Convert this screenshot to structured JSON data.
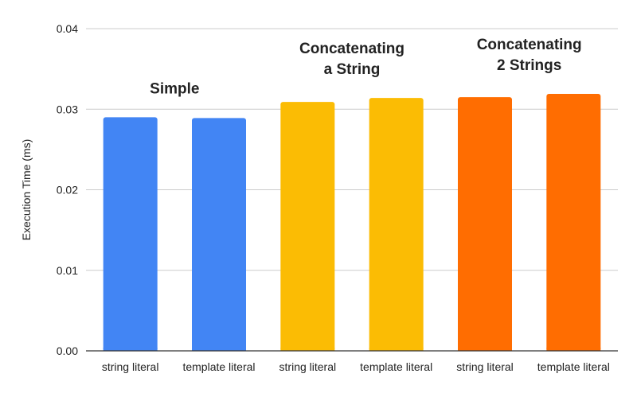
{
  "chart_data": {
    "type": "bar",
    "title": "",
    "xlabel": "",
    "ylabel": "Execution Time (ms)",
    "ylim": [
      0,
      0.04
    ],
    "yticks": [
      "0.00",
      "0.01",
      "0.02",
      "0.03",
      "0.04"
    ],
    "yticks_values": [
      0,
      0.01,
      0.02,
      0.03,
      0.04
    ],
    "grid": true,
    "legend": "none",
    "categories": [
      "string literal",
      "template literal",
      "string literal",
      "template literal",
      "string literal",
      "template literal"
    ],
    "values": [
      0.029,
      0.0289,
      0.0309,
      0.0314,
      0.0315,
      0.0319
    ],
    "colors": [
      "#4285f4",
      "#4285f4",
      "#fbbc04",
      "#fbbc04",
      "#ff6d01",
      "#ff6d01"
    ],
    "groups": [
      {
        "label_lines": [
          "Simple"
        ],
        "bars": [
          0,
          1
        ]
      },
      {
        "label_lines": [
          "Concatenating",
          "a String"
        ],
        "bars": [
          2,
          3
        ]
      },
      {
        "label_lines": [
          "Concatenating",
          "2 Strings"
        ],
        "bars": [
          4,
          5
        ]
      }
    ]
  }
}
